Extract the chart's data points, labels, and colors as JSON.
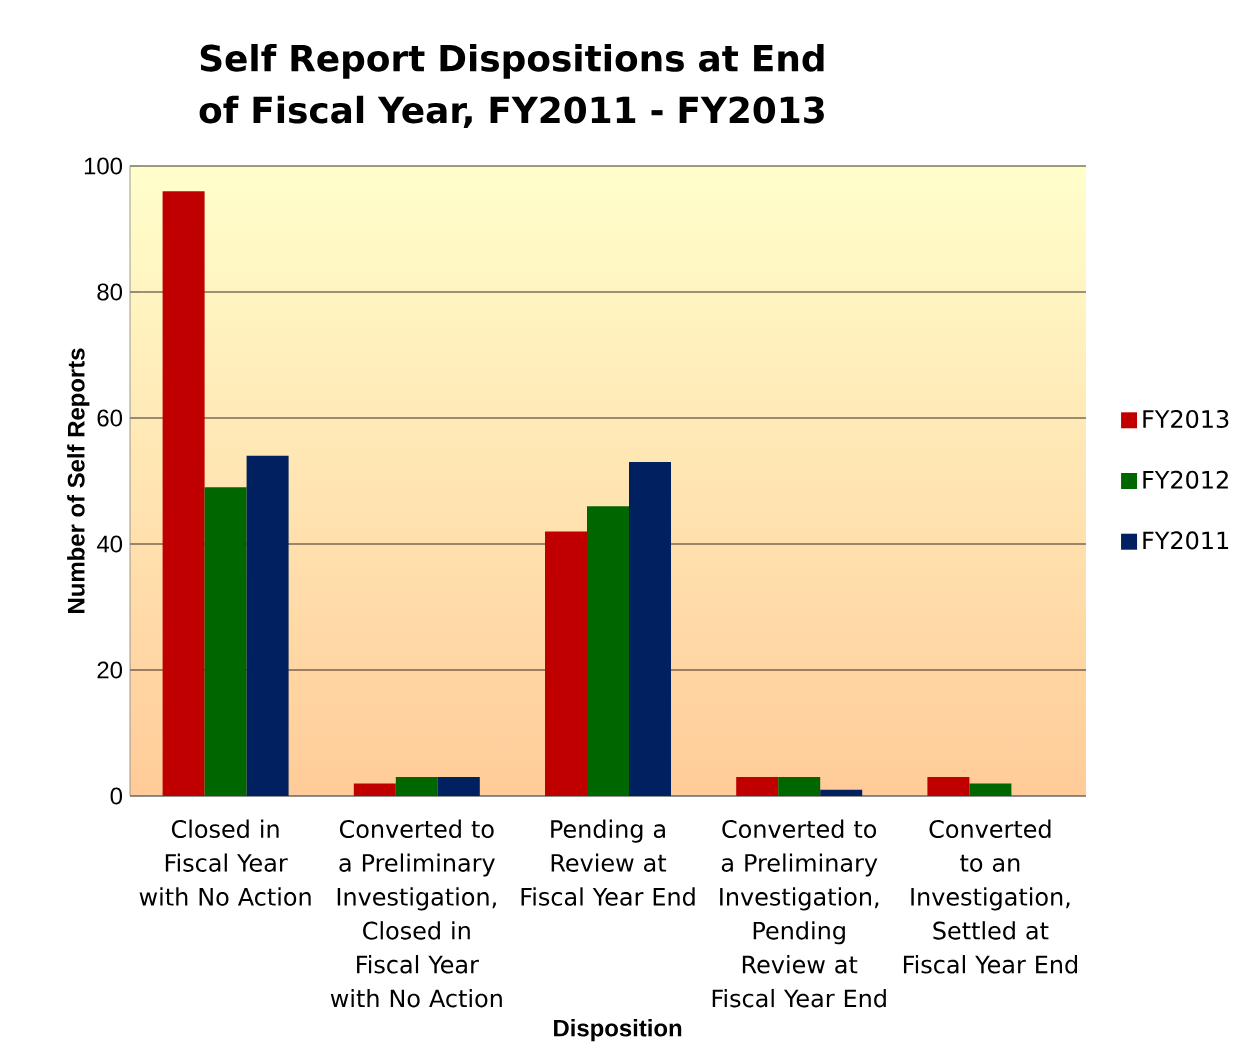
{
  "chart_data": {
    "type": "bar",
    "title": "Self Report Dispositions at End of Fiscal Year, FY2011 - FY2013",
    "xlabel": "Disposition",
    "ylabel": "Number of Self Reports",
    "categories": [
      "Closed in Fiscal Year with No Action",
      "Converted to a Preliminary Investigation, Closed in Fiscal Year with No Action",
      "Pending a Review at Fiscal Year End",
      "Converted to a Preliminary Investigation, Pending Review at Fiscal Year End",
      "Converted to an Investigation, Settled at Fiscal Year End"
    ],
    "series": [
      {
        "name": "FY2013",
        "color": "#c00000",
        "values": [
          96,
          2,
          42,
          3,
          3
        ]
      },
      {
        "name": "FY2012",
        "color": "#006600",
        "values": [
          49,
          3,
          46,
          3,
          2
        ]
      },
      {
        "name": "FY2011",
        "color": "#002060",
        "values": [
          54,
          3,
          53,
          1,
          0
        ]
      }
    ],
    "ylim": [
      0,
      100
    ],
    "yticks": [
      0,
      20,
      40,
      60,
      80,
      100
    ],
    "grid": "y",
    "legend": "right"
  }
}
